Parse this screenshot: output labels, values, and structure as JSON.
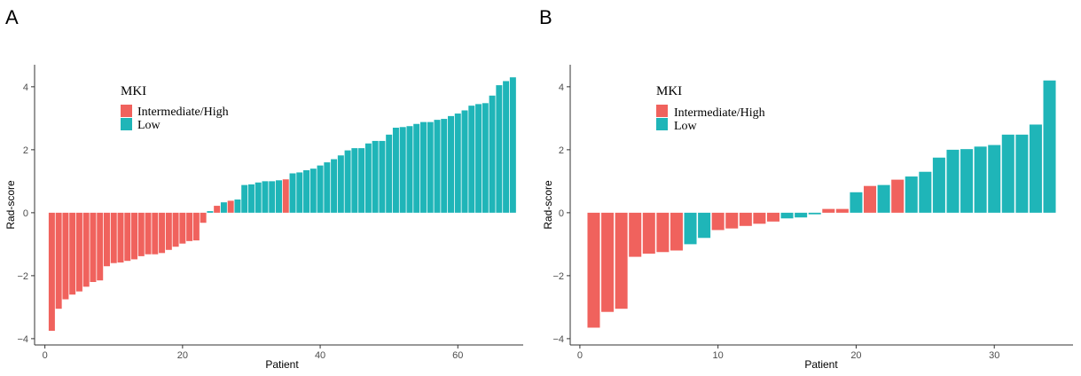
{
  "colors": {
    "intermediate_high": "#F0625D",
    "low": "#1FB5B8"
  },
  "chart_data": [
    {
      "type": "bar",
      "panel": "A",
      "xlabel": "Patient",
      "ylabel": "Rad-score",
      "xlim": [
        -1.5,
        69.5
      ],
      "ylim": [
        -4.2,
        4.7
      ],
      "xticks": [
        0,
        20,
        40,
        60
      ],
      "xtick_labels": [
        "0",
        "20",
        "40",
        "60"
      ],
      "yticks": [
        -4,
        -2,
        0,
        2,
        4
      ],
      "ytick_labels": [
        "−4",
        "−2",
        "0",
        "2",
        "4"
      ],
      "legend": {
        "title": "MKI",
        "entries": [
          {
            "label": "Intermediate/High",
            "key": "IH"
          },
          {
            "label": "Low",
            "key": "L"
          }
        ]
      },
      "x": [
        1,
        2,
        3,
        4,
        5,
        6,
        7,
        8,
        9,
        10,
        11,
        12,
        13,
        14,
        15,
        16,
        17,
        18,
        19,
        20,
        21,
        22,
        23,
        24,
        25,
        26,
        27,
        28,
        29,
        30,
        31,
        32,
        33,
        34,
        35,
        36,
        37,
        38,
        39,
        40,
        41,
        42,
        43,
        44,
        45,
        46,
        47,
        48,
        49,
        50,
        51,
        52,
        53,
        54,
        55,
        56,
        57,
        58,
        59,
        60,
        61,
        62,
        63,
        64,
        65,
        66,
        67,
        68
      ],
      "values": [
        -3.75,
        -3.05,
        -2.75,
        -2.6,
        -2.5,
        -2.35,
        -2.2,
        -2.15,
        -1.7,
        -1.6,
        -1.58,
        -1.53,
        -1.48,
        -1.38,
        -1.32,
        -1.32,
        -1.28,
        -1.18,
        -1.08,
        -0.98,
        -0.9,
        -0.88,
        -0.32,
        0.05,
        0.22,
        0.33,
        0.38,
        0.42,
        0.88,
        0.9,
        0.96,
        1.0,
        1.0,
        1.03,
        1.06,
        1.25,
        1.28,
        1.35,
        1.4,
        1.5,
        1.6,
        1.7,
        1.82,
        1.98,
        2.05,
        2.05,
        2.2,
        2.28,
        2.28,
        2.48,
        2.7,
        2.72,
        2.75,
        2.82,
        2.88,
        2.88,
        2.95,
        2.98,
        3.07,
        3.15,
        3.25,
        3.4,
        3.45,
        3.48,
        3.72,
        4.05,
        4.18,
        4.3
      ],
      "groups": [
        "IH",
        "IH",
        "IH",
        "IH",
        "IH",
        "IH",
        "IH",
        "IH",
        "IH",
        "IH",
        "IH",
        "IH",
        "IH",
        "IH",
        "IH",
        "IH",
        "IH",
        "IH",
        "IH",
        "IH",
        "IH",
        "IH",
        "IH",
        "L",
        "IH",
        "L",
        "IH",
        "L",
        "L",
        "L",
        "L",
        "L",
        "L",
        "L",
        "IH",
        "L",
        "L",
        "L",
        "L",
        "L",
        "L",
        "L",
        "L",
        "L",
        "L",
        "L",
        "L",
        "L",
        "L",
        "L",
        "L",
        "L",
        "L",
        "L",
        "L",
        "L",
        "L",
        "L",
        "L",
        "L",
        "L",
        "L",
        "L",
        "L",
        "L",
        "L",
        "L",
        "L"
      ]
    },
    {
      "type": "bar",
      "panel": "B",
      "xlabel": "Patient",
      "ylabel": "Rad-score",
      "xlim": [
        -0.7,
        35.7
      ],
      "ylim": [
        -4.2,
        4.7
      ],
      "xticks": [
        0,
        10,
        20,
        30
      ],
      "xtick_labels": [
        "0",
        "10",
        "20",
        "30"
      ],
      "yticks": [
        -4,
        -2,
        0,
        2,
        4
      ],
      "ytick_labels": [
        "−4",
        "−2",
        "0",
        "2",
        "4"
      ],
      "legend": {
        "title": "MKI",
        "entries": [
          {
            "label": "Intermediate/High",
            "key": "IH"
          },
          {
            "label": "Low",
            "key": "L"
          }
        ]
      },
      "x": [
        1,
        2,
        3,
        4,
        5,
        6,
        7,
        8,
        9,
        10,
        11,
        12,
        13,
        14,
        15,
        16,
        17,
        18,
        19,
        20,
        21,
        22,
        23,
        24,
        25,
        26,
        27,
        28,
        29,
        30,
        31,
        32,
        33,
        34
      ],
      "values": [
        -3.65,
        -3.15,
        -3.05,
        -1.4,
        -1.3,
        -1.25,
        -1.2,
        -1.0,
        -0.8,
        -0.55,
        -0.5,
        -0.42,
        -0.35,
        -0.28,
        -0.18,
        -0.15,
        -0.05,
        0.12,
        0.12,
        0.65,
        0.85,
        0.88,
        1.05,
        1.15,
        1.3,
        1.75,
        2.0,
        2.02,
        2.1,
        2.15,
        2.48,
        2.48,
        2.8,
        4.2
      ],
      "groups": [
        "IH",
        "IH",
        "IH",
        "IH",
        "IH",
        "IH",
        "IH",
        "L",
        "L",
        "IH",
        "IH",
        "IH",
        "IH",
        "IH",
        "L",
        "L",
        "L",
        "IH",
        "IH",
        "L",
        "IH",
        "L",
        "IH",
        "L",
        "L",
        "L",
        "L",
        "L",
        "L",
        "L",
        "L",
        "L",
        "L",
        "L"
      ]
    }
  ]
}
